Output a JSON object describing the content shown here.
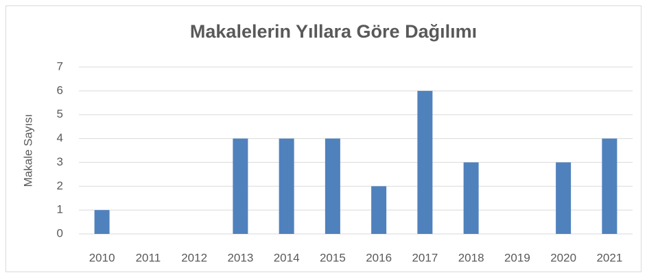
{
  "chart_data": {
    "type": "bar",
    "title": "Makalelerin Yıllara Göre Dağılımı",
    "y_label": "Makale Sayısı",
    "categories": [
      "2010",
      "2011",
      "2012",
      "2013",
      "2014",
      "2015",
      "2016",
      "2017",
      "2018",
      "2019",
      "2020",
      "2021"
    ],
    "values": [
      1,
      0,
      0,
      4,
      4,
      4,
      2,
      6,
      3,
      0,
      3,
      4
    ],
    "color": "#4f81bd",
    "ylim": [
      0,
      7
    ],
    "yticks": [
      0,
      1,
      2,
      3,
      4,
      5,
      6,
      7
    ],
    "grid": true
  }
}
